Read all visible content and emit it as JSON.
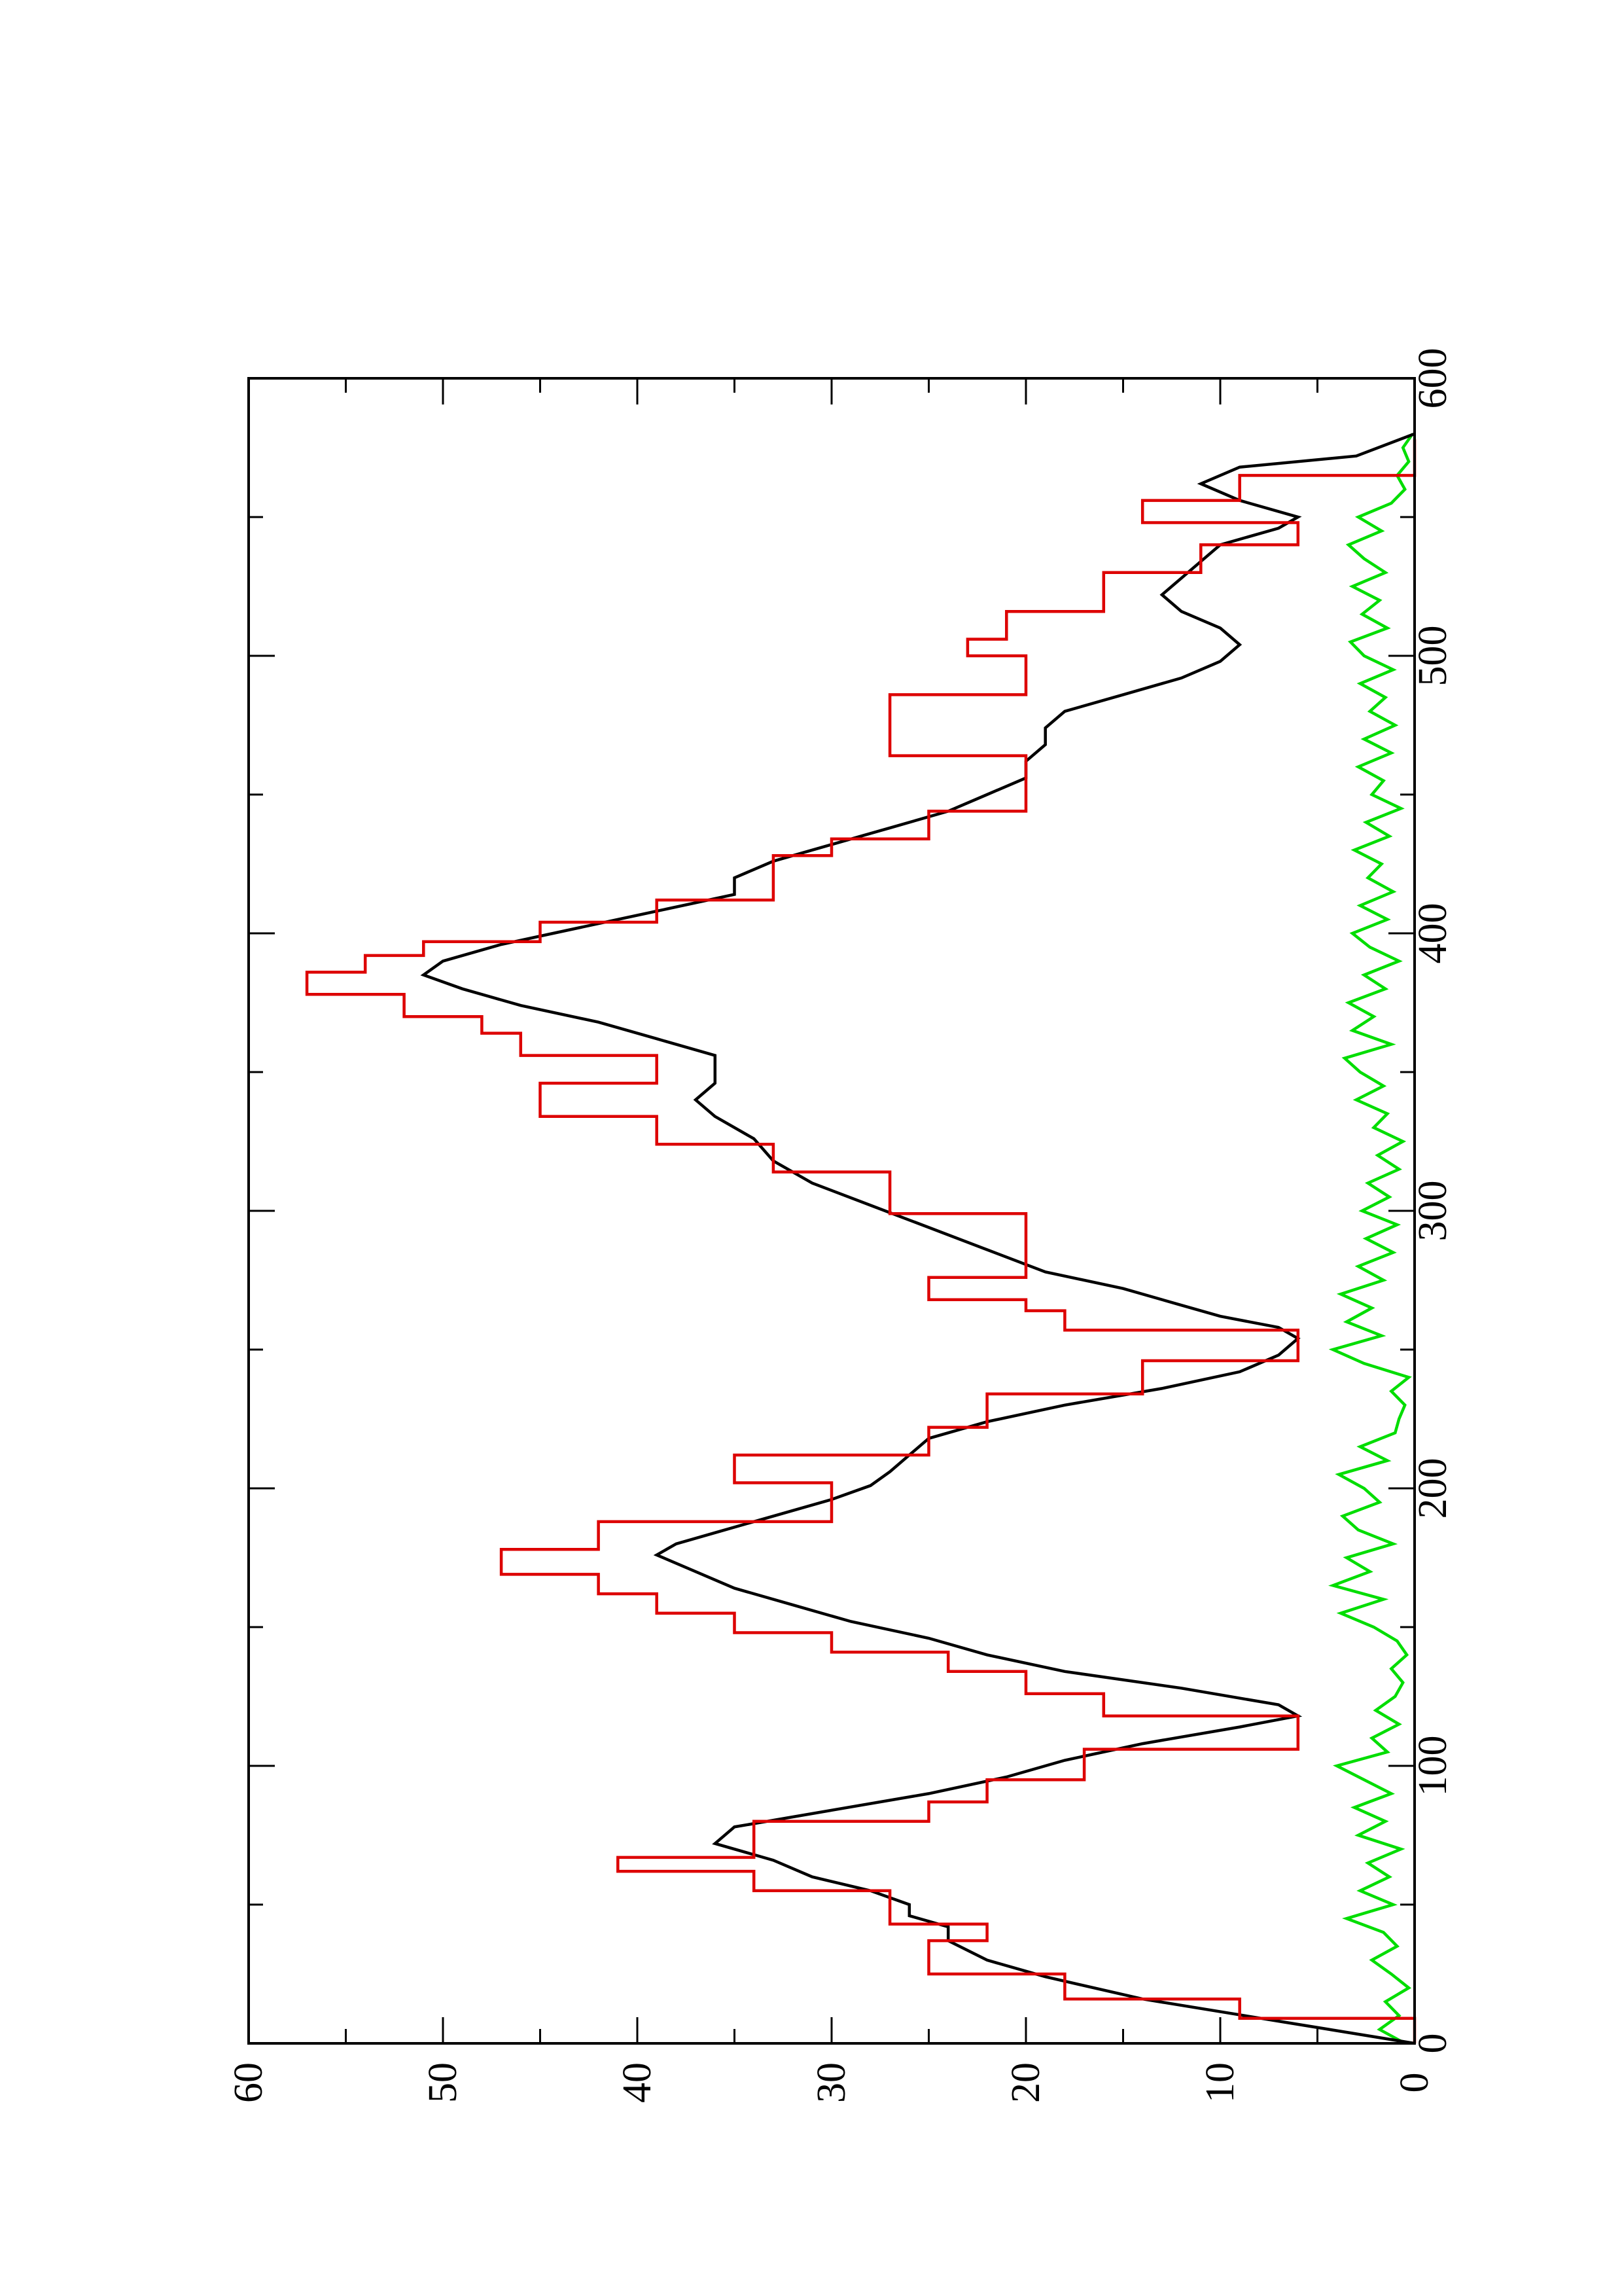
{
  "colors": {
    "background": "#ffffff",
    "axis": "#000000",
    "black_series": "#000000",
    "red_series": "#dd0000",
    "green_series": "#00dd00"
  },
  "chart_data": {
    "type": "line",
    "orientation": "rotated-90-counterclockwise",
    "title": "",
    "xlabel": "",
    "ylabel": "",
    "xlim": [
      0,
      600
    ],
    "ylim": [
      0,
      60
    ],
    "x_ticks": [
      "0",
      "100",
      "200",
      "300",
      "400",
      "500",
      "600"
    ],
    "y_ticks": [
      "0",
      "10",
      "20",
      "30",
      "40",
      "50",
      "60"
    ],
    "grid": false,
    "legend": "none",
    "series": [
      {
        "color": "#dd0000",
        "style": "step",
        "x": [
          0,
          9,
          9,
          16,
          16,
          25,
          25,
          37,
          37,
          43,
          43,
          55,
          55,
          62,
          62,
          67,
          67,
          80,
          80,
          87,
          87,
          95,
          95,
          106,
          106,
          118,
          118,
          126,
          126,
          134,
          134,
          141,
          141,
          148,
          148,
          155,
          155,
          162,
          162,
          169,
          169,
          178,
          178,
          188,
          188,
          202,
          202,
          212,
          212,
          222,
          222,
          234,
          234,
          246,
          246,
          257,
          257,
          264,
          264,
          268,
          268,
          276,
          276,
          299,
          299,
          314,
          314,
          324,
          324,
          334,
          334,
          346,
          346,
          356,
          356,
          364,
          364,
          370,
          370,
          378,
          378,
          386,
          386,
          392,
          392,
          397,
          397,
          404,
          404,
          412,
          412,
          428,
          428,
          434,
          434,
          444,
          444,
          460,
          460,
          464,
          464,
          476,
          476,
          486,
          486,
          500,
          500,
          506,
          506,
          516,
          516,
          530,
          530,
          540,
          540,
          548,
          548,
          556,
          556,
          565,
          565,
          578
        ],
        "y": [
          0,
          0,
          9,
          9,
          18,
          18,
          25,
          25,
          22,
          22,
          27,
          27,
          34,
          34,
          41,
          41,
          34,
          34,
          25,
          25,
          22,
          22,
          17,
          17,
          6,
          6,
          16,
          16,
          20,
          20,
          24,
          24,
          30,
          30,
          35,
          35,
          39,
          39,
          42,
          42,
          47,
          47,
          42,
          42,
          30,
          30,
          35,
          35,
          25,
          25,
          22,
          22,
          14,
          14,
          6,
          6,
          18,
          18,
          20,
          20,
          25,
          25,
          20,
          20,
          27,
          27,
          33,
          33,
          39,
          39,
          45,
          45,
          39,
          39,
          46,
          46,
          48,
          48,
          52,
          52,
          57,
          57,
          54,
          54,
          51,
          51,
          45,
          45,
          39,
          39,
          33,
          33,
          30,
          30,
          25,
          25,
          20,
          20,
          20,
          20,
          27,
          27,
          27,
          27,
          20,
          20,
          23,
          23,
          21,
          21,
          16,
          16,
          11,
          11,
          6,
          6,
          14,
          14,
          9,
          9,
          0,
          0
        ]
      },
      {
        "color": "#000000",
        "style": "line",
        "x": [
          0,
          8,
          16,
          24,
          30,
          37,
          42,
          46,
          50,
          55,
          60,
          66,
          72,
          78,
          84,
          90,
          96,
          102,
          108,
          114,
          118,
          122,
          128,
          134,
          140,
          146,
          152,
          158,
          164,
          170,
          176,
          180,
          184,
          190,
          196,
          201,
          206,
          212,
          218,
          224,
          230,
          236,
          242,
          248,
          254,
          258,
          262,
          266,
          272,
          278,
          286,
          294,
          302,
          310,
          318,
          326,
          334,
          340,
          346,
          352,
          356,
          362,
          368,
          374,
          380,
          385,
          390,
          396,
          402,
          408,
          414,
          420,
          426,
          432,
          438,
          444,
          450,
          456,
          462,
          468,
          474,
          480,
          486,
          492,
          498,
          504,
          510,
          516,
          522,
          528,
          534,
          540,
          546,
          550,
          556,
          562,
          568,
          572,
          580
        ],
        "y": [
          0,
          7,
          14,
          19,
          22,
          24,
          24,
          26,
          26,
          28,
          31,
          33,
          36,
          35,
          30,
          25,
          21,
          18,
          14,
          9,
          6,
          7,
          12,
          18,
          22,
          25,
          29,
          32,
          35,
          37,
          39,
          38,
          36,
          33,
          30,
          28,
          27,
          26,
          25,
          22,
          18,
          13,
          9,
          7,
          6,
          7,
          10,
          12,
          15,
          19,
          22,
          25,
          28,
          31,
          33,
          34,
          36,
          37,
          36,
          36,
          36,
          39,
          42,
          46,
          49,
          51,
          50,
          47,
          43,
          39,
          35,
          35,
          33,
          30,
          27,
          24,
          22,
          20,
          20,
          19,
          19,
          18,
          15,
          12,
          10,
          9,
          10,
          12,
          13,
          12,
          11,
          10,
          7,
          6,
          9,
          11,
          9,
          3,
          0
        ]
      },
      {
        "color": "#00dd00",
        "style": "line",
        "x": [
          0,
          5,
          10,
          15,
          20,
          25,
          30,
          35,
          40,
          45,
          50,
          55,
          60,
          65,
          70,
          75,
          80,
          85,
          90,
          95,
          100,
          105,
          110,
          115,
          120,
          125,
          130,
          135,
          140,
          145,
          150,
          155,
          160,
          165,
          170,
          175,
          180,
          185,
          190,
          195,
          200,
          205,
          210,
          215,
          220,
          225,
          230,
          235,
          240,
          245,
          250,
          255,
          260,
          265,
          270,
          275,
          280,
          285,
          290,
          295,
          300,
          305,
          310,
          315,
          320,
          325,
          330,
          335,
          340,
          345,
          350,
          355,
          360,
          365,
          370,
          375,
          380,
          385,
          390,
          395,
          400,
          405,
          410,
          415,
          420,
          425,
          430,
          435,
          440,
          445,
          450,
          455,
          460,
          465,
          470,
          475,
          480,
          485,
          490,
          495,
          500,
          505,
          510,
          515,
          520,
          525,
          530,
          535,
          540,
          545,
          550,
          555,
          560,
          565,
          570,
          575,
          580
        ],
        "y": [
          0.5,
          1.8,
          0.8,
          1.5,
          0.3,
          1.2,
          2.2,
          0.9,
          1.6,
          3.5,
          1.1,
          2.8,
          1.3,
          2.4,
          0.7,
          2.9,
          1.5,
          3.1,
          1.2,
          2.6,
          4.0,
          1.4,
          2.2,
          0.8,
          2.0,
          1.0,
          0.6,
          1.2,
          0.4,
          0.9,
          2.1,
          3.8,
          1.6,
          4.2,
          2.3,
          3.5,
          1.1,
          2.9,
          3.7,
          1.8,
          2.6,
          3.9,
          1.4,
          2.8,
          1.0,
          0.8,
          0.5,
          1.2,
          0.3,
          2.6,
          4.2,
          1.7,
          3.5,
          2.2,
          3.8,
          1.6,
          2.9,
          1.1,
          2.5,
          0.9,
          2.7,
          1.3,
          2.4,
          0.8,
          1.9,
          0.6,
          2.1,
          1.4,
          3.0,
          1.6,
          2.8,
          3.6,
          1.2,
          3.2,
          2.1,
          3.4,
          1.5,
          2.6,
          0.8,
          2.3,
          3.2,
          1.4,
          2.8,
          1.1,
          2.4,
          1.7,
          3.1,
          1.3,
          2.5,
          0.7,
          2.2,
          1.6,
          2.9,
          1.2,
          2.6,
          1.0,
          2.3,
          1.5,
          2.8,
          1.1,
          2.6,
          3.3,
          1.4,
          2.7,
          1.8,
          3.2,
          1.5,
          2.6,
          3.4,
          1.7,
          2.9,
          1.2,
          0.5,
          0.9,
          0.3,
          0.6,
          0.1
        ]
      }
    ]
  }
}
